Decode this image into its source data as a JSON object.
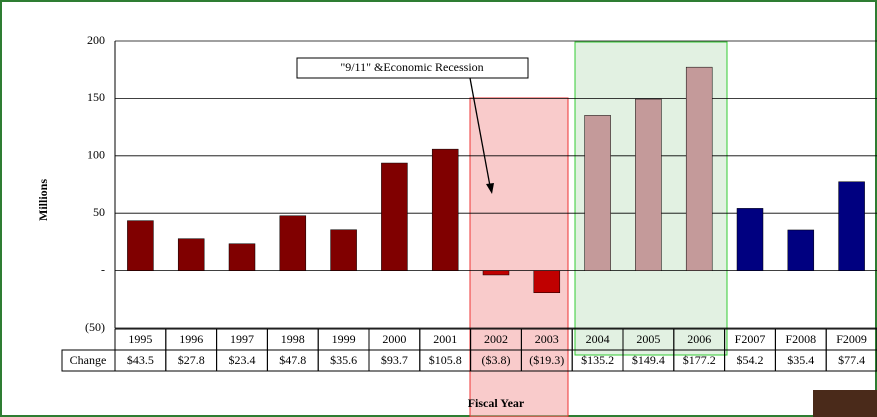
{
  "chart_data": {
    "type": "bar",
    "annotation": "\"9/11\" &Economic Recession",
    "y_label": "Millions",
    "x_label": "Fiscal Year",
    "table_row_label": "Change",
    "categories": [
      "1995",
      "1996",
      "1997",
      "1998",
      "1999",
      "2000",
      "2001",
      "2002",
      "2003",
      "2004",
      "2005",
      "2006",
      "F2007",
      "F2008",
      "F2009"
    ],
    "values": [
      43.5,
      27.8,
      23.4,
      47.8,
      35.6,
      93.7,
      105.8,
      -3.8,
      -19.3,
      135.2,
      149.4,
      177.2,
      54.2,
      35.4,
      77.4
    ],
    "value_labels": [
      "$43.5",
      "$27.8",
      "$23.4",
      "$47.8",
      "$35.6",
      "$93.7",
      "$105.8",
      "($3.8)",
      "($19.3)",
      "$135.2",
      "$149.4",
      "$177.2",
      "$54.2",
      "$35.4",
      "$77.4"
    ],
    "colors": [
      "#800000",
      "#800000",
      "#800000",
      "#800000",
      "#800000",
      "#800000",
      "#800000",
      "#c00000",
      "#c00000",
      "#c49a9a",
      "#c49a9a",
      "#c49a9a",
      "#000080",
      "#000080",
      "#000080"
    ],
    "ylim": [
      -50,
      200
    ],
    "yticks": [
      {
        "value": -50,
        "label": "(50)"
      },
      {
        "value": 0,
        "label": "-"
      },
      50,
      100,
      150,
      200
    ],
    "grid": true
  }
}
